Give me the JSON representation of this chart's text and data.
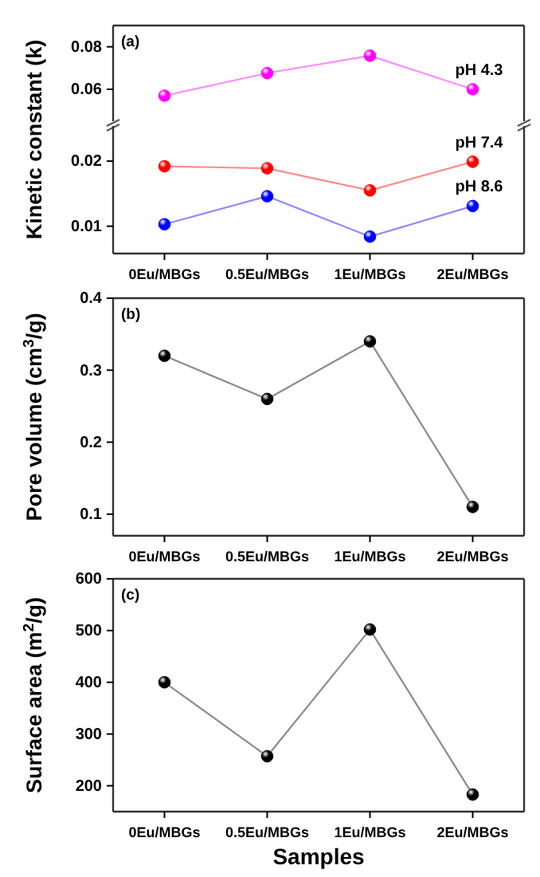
{
  "chart_data": [
    {
      "type": "line",
      "categories": [
        null,
        null,
        null,
        null
      ],
      "ylim": [
        0.045,
        0.09
      ],
      "yticks": [
        0.06,
        0.08
      ],
      "marker": "circle",
      "annotations": [
        "(a)"
      ],
      "series": [
        {
          "name": "pH 4.3",
          "color": "#ff00ff",
          "values": [
            0.057,
            0.0676,
            0.0758,
            0.06
          ]
        }
      ]
    },
    {
      "type": "line",
      "categories": [
        "0Eu/MBGs",
        "0.5Eu/MBGs",
        "1Eu/MBGs",
        "2Eu/MBGs"
      ],
      "ylabel": "Kinetic constant (k)",
      "ylim": [
        0.0058,
        0.0254
      ],
      "yticks": [
        0.01,
        0.02
      ],
      "marker": "circle",
      "series": [
        {
          "name": "pH 7.4",
          "color": "#ff0000",
          "values": [
            0.0192,
            0.0189,
            0.0155,
            0.0199
          ]
        },
        {
          "name": "pH 8.6",
          "color": "#0000ff",
          "values": [
            0.0103,
            0.0146,
            0.0084,
            0.0131
          ]
        }
      ]
    },
    {
      "type": "line",
      "categories": [
        "0Eu/MBGs",
        "0.5Eu/MBGs",
        "1Eu/MBGs",
        "2Eu/MBGs"
      ],
      "ylabel": "Pore volume (cm$^{3}$/g)",
      "ylim": [
        0.07,
        0.4
      ],
      "yticks": [
        0.1,
        0.2,
        0.3,
        0.4
      ],
      "marker": "circle",
      "annotations": [
        "(b)"
      ],
      "series": [
        {
          "color": "#000000",
          "values": [
            0.32,
            0.26,
            0.34,
            0.11
          ]
        }
      ]
    },
    {
      "type": "line",
      "categories": [
        "0Eu/MBGs",
        "0.5Eu/MBGs",
        "1Eu/MBGs",
        "2Eu/MBGs"
      ],
      "xlabel": "Samples",
      "ylabel": "Surface area (m$^{2}$/g)",
      "ylim": [
        150,
        600
      ],
      "yticks": [
        200,
        300,
        400,
        500,
        600
      ],
      "marker": "circle",
      "annotations": [
        "(c)"
      ],
      "series": [
        {
          "color": "#000000",
          "values": [
            400,
            257,
            502,
            183
          ]
        }
      ]
    }
  ]
}
